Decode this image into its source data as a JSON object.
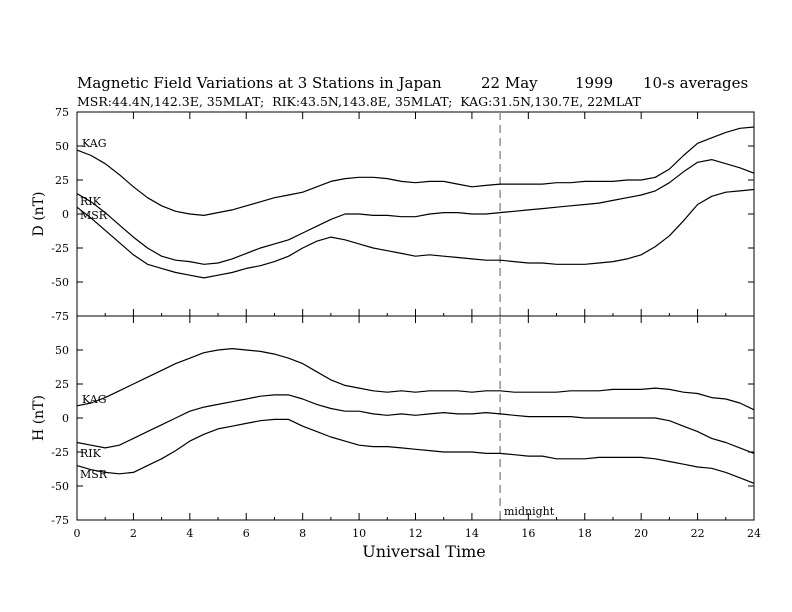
{
  "header": {
    "title": "Magnetic Field Variations at 3 Stations in Japan",
    "date": "22 May",
    "year": "1999",
    "averaging": "10-s averages",
    "stations_line": "MSR:44.4N,142.3E, 35MLAT;  RIK:43.5N,143.8E, 35MLAT;  KAG:31.5N,130.7E, 22MLAT"
  },
  "annotation": {
    "midnight_label": "midnight",
    "midnight_ut": 15
  },
  "chart_data": {
    "type": "line",
    "xlabel": "Universal Time",
    "xlim": [
      0,
      24
    ],
    "xticks": [
      0,
      2,
      4,
      6,
      8,
      10,
      12,
      14,
      16,
      18,
      20,
      22,
      24
    ],
    "xtick_labels": [
      "0",
      "2",
      "4",
      "6",
      "8",
      "10",
      "12",
      "14",
      "16",
      "18",
      "20",
      "22",
      "24"
    ],
    "panels": [
      {
        "id": "D",
        "ylabel": "D (nT)",
        "ylim": [
          -75,
          75
        ],
        "yticks": [
          -75,
          -50,
          -25,
          0,
          25,
          50,
          75
        ],
        "series": [
          {
            "name": "KAG",
            "x": [
              0,
              0.5,
              1,
              1.5,
              2,
              2.5,
              3,
              3.5,
              4,
              4.5,
              5,
              5.5,
              6,
              6.5,
              7,
              7.5,
              8,
              8.5,
              9,
              9.5,
              10,
              10.5,
              11,
              11.5,
              12,
              12.5,
              13,
              13.5,
              14,
              14.5,
              15,
              15.5,
              16,
              16.5,
              17,
              17.5,
              18,
              18.5,
              19,
              19.5,
              20,
              20.5,
              21,
              21.5,
              22,
              22.5,
              23,
              23.5,
              24
            ],
            "y": [
              47,
              43,
              37,
              29,
              20,
              12,
              6,
              2,
              0,
              -1,
              1,
              3,
              6,
              9,
              12,
              14,
              16,
              20,
              24,
              26,
              27,
              27,
              26,
              24,
              23,
              24,
              24,
              22,
              20,
              21,
              22,
              22,
              22,
              22,
              23,
              23,
              24,
              24,
              24,
              25,
              25,
              27,
              33,
              43,
              52,
              56,
              60,
              63,
              64
            ]
          },
          {
            "name": "RIK",
            "x": [
              0,
              0.5,
              1,
              1.5,
              2,
              2.5,
              3,
              3.5,
              4,
              4.5,
              5,
              5.5,
              6,
              6.5,
              7,
              7.5,
              8,
              8.5,
              9,
              9.5,
              10,
              10.5,
              11,
              11.5,
              12,
              12.5,
              13,
              13.5,
              14,
              14.5,
              15,
              15.5,
              16,
              16.5,
              17,
              17.5,
              18,
              18.5,
              19,
              19.5,
              20,
              20.5,
              21,
              21.5,
              22,
              22.5,
              23,
              23.5,
              24
            ],
            "y": [
              15,
              9,
              1,
              -8,
              -17,
              -25,
              -31,
              -34,
              -35,
              -37,
              -36,
              -33,
              -29,
              -25,
              -22,
              -19,
              -14,
              -9,
              -4,
              0,
              0,
              -1,
              -1,
              -2,
              -2,
              0,
              1,
              1,
              0,
              0,
              1,
              2,
              3,
              4,
              5,
              6,
              7,
              8,
              10,
              12,
              14,
              17,
              23,
              31,
              38,
              40,
              37,
              34,
              30
            ]
          },
          {
            "name": "MSR",
            "x": [
              0,
              0.5,
              1,
              1.5,
              2,
              2.5,
              3,
              3.5,
              4,
              4.5,
              5,
              5.5,
              6,
              6.5,
              7,
              7.5,
              8,
              8.5,
              9,
              9.5,
              10,
              10.5,
              11,
              11.5,
              12,
              12.5,
              13,
              13.5,
              14,
              14.5,
              15,
              15.5,
              16,
              16.5,
              17,
              17.5,
              18,
              18.5,
              19,
              19.5,
              20,
              20.5,
              21,
              21.5,
              22,
              22.5,
              23,
              23.5,
              24
            ],
            "y": [
              5,
              -3,
              -12,
              -21,
              -30,
              -37,
              -40,
              -43,
              -45,
              -47,
              -45,
              -43,
              -40,
              -38,
              -35,
              -31,
              -25,
              -20,
              -17,
              -19,
              -22,
              -25,
              -27,
              -29,
              -31,
              -30,
              -31,
              -32,
              -33,
              -34,
              -34,
              -35,
              -36,
              -36,
              -37,
              -37,
              -37,
              -36,
              -35,
              -33,
              -30,
              -24,
              -16,
              -5,
              7,
              13,
              16,
              17,
              18
            ]
          }
        ],
        "labels": [
          "KAG",
          "RIK",
          "MSR"
        ]
      },
      {
        "id": "H",
        "ylabel": "H (nT)",
        "ylim": [
          -75,
          75
        ],
        "yticks": [
          -75,
          -50,
          -25,
          0,
          25,
          50,
          75
        ],
        "series": [
          {
            "name": "KAG",
            "x": [
              0,
              0.5,
              1,
              1.5,
              2,
              2.5,
              3,
              3.5,
              4,
              4.5,
              5,
              5.5,
              6,
              6.5,
              7,
              7.5,
              8,
              8.5,
              9,
              9.5,
              10,
              10.5,
              11,
              11.5,
              12,
              12.5,
              13,
              13.5,
              14,
              14.5,
              15,
              15.5,
              16,
              16.5,
              17,
              17.5,
              18,
              18.5,
              19,
              19.5,
              20,
              20.5,
              21,
              21.5,
              22,
              22.5,
              23,
              23.5,
              24
            ],
            "y": [
              9,
              11,
              15,
              20,
              25,
              30,
              35,
              40,
              44,
              48,
              50,
              51,
              50,
              49,
              47,
              44,
              40,
              34,
              28,
              24,
              22,
              20,
              19,
              20,
              19,
              20,
              20,
              20,
              19,
              20,
              20,
              19,
              19,
              19,
              19,
              20,
              20,
              20,
              21,
              21,
              21,
              22,
              21,
              19,
              18,
              15,
              14,
              11,
              6
            ]
          },
          {
            "name": "RIK",
            "x": [
              0,
              0.5,
              1,
              1.5,
              2,
              2.5,
              3,
              3.5,
              4,
              4.5,
              5,
              5.5,
              6,
              6.5,
              7,
              7.5,
              8,
              8.5,
              9,
              9.5,
              10,
              10.5,
              11,
              11.5,
              12,
              12.5,
              13,
              13.5,
              14,
              14.5,
              15,
              15.5,
              16,
              16.5,
              17,
              17.5,
              18,
              18.5,
              19,
              19.5,
              20,
              20.5,
              21,
              21.5,
              22,
              22.5,
              23,
              23.5,
              24
            ],
            "y": [
              -18,
              -20,
              -22,
              -20,
              -15,
              -10,
              -5,
              0,
              5,
              8,
              10,
              12,
              14,
              16,
              17,
              17,
              14,
              10,
              7,
              5,
              5,
              3,
              2,
              3,
              2,
              3,
              4,
              3,
              3,
              4,
              3,
              2,
              1,
              1,
              1,
              1,
              0,
              0,
              0,
              0,
              0,
              0,
              -2,
              -6,
              -10,
              -15,
              -18,
              -22,
              -26
            ]
          },
          {
            "name": "MSR",
            "x": [
              0,
              0.5,
              1,
              1.5,
              2,
              2.5,
              3,
              3.5,
              4,
              4.5,
              5,
              5.5,
              6,
              6.5,
              7,
              7.5,
              8,
              8.5,
              9,
              9.5,
              10,
              10.5,
              11,
              11.5,
              12,
              12.5,
              13,
              13.5,
              14,
              14.5,
              15,
              15.5,
              16,
              16.5,
              17,
              17.5,
              18,
              18.5,
              19,
              19.5,
              20,
              20.5,
              21,
              21.5,
              22,
              22.5,
              23,
              23.5,
              24
            ],
            "y": [
              -35,
              -38,
              -40,
              -41,
              -40,
              -35,
              -30,
              -24,
              -17,
              -12,
              -8,
              -6,
              -4,
              -2,
              -1,
              -1,
              -6,
              -10,
              -14,
              -17,
              -20,
              -21,
              -21,
              -22,
              -23,
              -24,
              -25,
              -25,
              -25,
              -26,
              -26,
              -27,
              -28,
              -28,
              -30,
              -30,
              -30,
              -29,
              -29,
              -29,
              -29,
              -30,
              -32,
              -34,
              -36,
              -37,
              -40,
              -44,
              -48
            ]
          }
        ],
        "labels": [
          "KAG",
          "RIK",
          "MSR"
        ]
      }
    ]
  }
}
